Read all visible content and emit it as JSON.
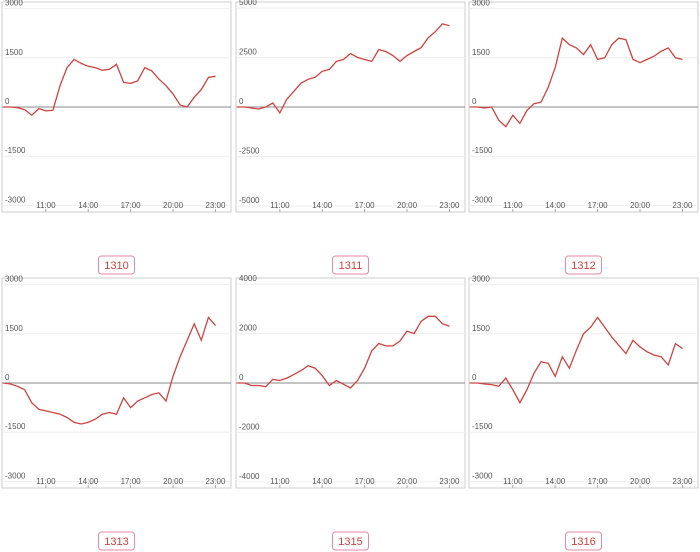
{
  "chart_data": [
    {
      "type": "line",
      "title": "1310",
      "color": "#d0423f",
      "grid": true,
      "x": [
        8,
        8.5,
        9,
        9.5,
        10,
        10.5,
        11,
        11.5,
        12,
        12.5,
        13,
        13.5,
        14,
        14.5,
        15,
        15.5,
        16,
        16.5,
        17,
        17.5,
        18,
        18.5,
        19,
        19.5,
        20,
        20.5,
        21,
        21.5,
        22,
        22.5,
        23
      ],
      "values": [
        0,
        0,
        -20,
        -80,
        -250,
        -50,
        -120,
        -100,
        650,
        1200,
        1450,
        1330,
        1240,
        1200,
        1120,
        1150,
        1300,
        750,
        720,
        800,
        1200,
        1100,
        850,
        650,
        400,
        60,
        0,
        300,
        530,
        900,
        940
      ],
      "xlim": [
        7.9,
        24.1
      ],
      "xticks": [
        {
          "value": 11,
          "label": "11:00"
        },
        {
          "value": 14,
          "label": "14:00"
        },
        {
          "value": 17,
          "label": "17:00"
        },
        {
          "value": 20,
          "label": "20:00"
        },
        {
          "value": 23,
          "label": "23:00"
        }
      ],
      "ylim": [
        -3200,
        3200
      ],
      "yticks": [
        -3000,
        -1500,
        0,
        1500,
        3000
      ]
    },
    {
      "type": "line",
      "title": "1311",
      "color": "#d0423f",
      "grid": true,
      "x": [
        8,
        8.5,
        9,
        9.5,
        10,
        10.5,
        11,
        11.5,
        12,
        12.5,
        13,
        13.5,
        14,
        14.5,
        15,
        15.5,
        16,
        16.5,
        17,
        17.5,
        18,
        18.5,
        19,
        19.5,
        20,
        20.5,
        21,
        21.5,
        22,
        22.5,
        23
      ],
      "values": [
        0,
        0,
        -50,
        -100,
        0,
        200,
        -300,
        400,
        800,
        1200,
        1400,
        1500,
        1800,
        1900,
        2300,
        2400,
        2700,
        2500,
        2400,
        2300,
        2900,
        2800,
        2600,
        2300,
        2600,
        2800,
        3000,
        3500,
        3800,
        4200,
        4100
      ],
      "xlim": [
        7.9,
        24.1
      ],
      "xticks": [
        {
          "value": 11,
          "label": "11:00"
        },
        {
          "value": 14,
          "label": "14:00"
        },
        {
          "value": 17,
          "label": "17:00"
        },
        {
          "value": 20,
          "label": "20:00"
        },
        {
          "value": 23,
          "label": "23:00"
        }
      ],
      "ylim": [
        -5300,
        5300
      ],
      "yticks": [
        -5000,
        -2500,
        0,
        2500,
        5000
      ]
    },
    {
      "type": "line",
      "title": "1312",
      "color": "#d0423f",
      "grid": true,
      "x": [
        8,
        8.5,
        9,
        9.5,
        10,
        10.5,
        11,
        11.5,
        12,
        12.5,
        13,
        13.5,
        14,
        14.5,
        15,
        15.5,
        16,
        16.5,
        17,
        17.5,
        18,
        18.5,
        19,
        19.5,
        20,
        20.5,
        21,
        21.5,
        22,
        22.5,
        23
      ],
      "values": [
        0,
        0,
        -30,
        0,
        -400,
        -600,
        -250,
        -500,
        -100,
        100,
        150,
        600,
        1200,
        2100,
        1900,
        1800,
        1600,
        1900,
        1450,
        1500,
        1900,
        2100,
        2050,
        1450,
        1350,
        1450,
        1550,
        1700,
        1800,
        1500,
        1450
      ],
      "xlim": [
        7.9,
        24.1
      ],
      "xticks": [
        {
          "value": 11,
          "label": "11:00"
        },
        {
          "value": 14,
          "label": "14:00"
        },
        {
          "value": 17,
          "label": "17:00"
        },
        {
          "value": 20,
          "label": "20:00"
        },
        {
          "value": 23,
          "label": "23:00"
        }
      ],
      "ylim": [
        -3200,
        3200
      ],
      "yticks": [
        -3000,
        -1500,
        0,
        1500,
        3000
      ]
    },
    {
      "type": "line",
      "title": "1313",
      "color": "#d0423f",
      "grid": true,
      "x": [
        8,
        8.5,
        9,
        9.5,
        10,
        10.5,
        11,
        11.5,
        12,
        12.5,
        13,
        13.5,
        14,
        14.5,
        15,
        15.5,
        16,
        16.5,
        17,
        17.5,
        18,
        18.5,
        19,
        19.5,
        20,
        20.5,
        21,
        21.5,
        22,
        22.5,
        23
      ],
      "values": [
        0,
        -30,
        -100,
        -200,
        -600,
        -800,
        -850,
        -900,
        -950,
        -1050,
        -1200,
        -1250,
        -1200,
        -1100,
        -950,
        -900,
        -950,
        -450,
        -750,
        -550,
        -450,
        -350,
        -300,
        -550,
        200,
        800,
        1300,
        1800,
        1300,
        2000,
        1750
      ],
      "xlim": [
        7.9,
        24.1
      ],
      "xticks": [
        {
          "value": 11,
          "label": "11:00"
        },
        {
          "value": 14,
          "label": "14:00"
        },
        {
          "value": 17,
          "label": "17:00"
        },
        {
          "value": 20,
          "label": "20:00"
        },
        {
          "value": 23,
          "label": "23:00"
        }
      ],
      "ylim": [
        -3200,
        3200
      ],
      "yticks": [
        -3000,
        -1500,
        0,
        1500,
        3000
      ]
    },
    {
      "type": "line",
      "title": "1315",
      "color": "#d0423f",
      "grid": true,
      "x": [
        8,
        8.5,
        9,
        9.5,
        10,
        10.5,
        11,
        11.5,
        12,
        12.5,
        13,
        13.5,
        14,
        14.5,
        15,
        15.5,
        16,
        16.5,
        17,
        17.5,
        18,
        18.5,
        19,
        19.5,
        20,
        20.5,
        21,
        21.5,
        22,
        22.5,
        23
      ],
      "values": [
        0,
        0,
        -100,
        -100,
        -150,
        150,
        100,
        200,
        350,
        500,
        700,
        600,
        300,
        -100,
        100,
        -50,
        -200,
        100,
        600,
        1300,
        1600,
        1500,
        1500,
        1700,
        2100,
        2000,
        2500,
        2700,
        2700,
        2400,
        2300
      ],
      "xlim": [
        7.9,
        24.1
      ],
      "xticks": [
        {
          "value": 11,
          "label": "11:00"
        },
        {
          "value": 14,
          "label": "14:00"
        },
        {
          "value": 17,
          "label": "17:00"
        },
        {
          "value": 20,
          "label": "20:00"
        },
        {
          "value": 23,
          "label": "23:00"
        }
      ],
      "ylim": [
        -4250,
        4250
      ],
      "yticks": [
        -4000,
        -2000,
        0,
        2000,
        4000
      ]
    },
    {
      "type": "line",
      "title": "1316",
      "color": "#d0423f",
      "grid": true,
      "x": [
        8,
        8.5,
        9,
        9.5,
        10,
        10.5,
        11,
        11.5,
        12,
        12.5,
        13,
        13.5,
        14,
        14.5,
        15,
        15.5,
        16,
        16.5,
        17,
        17.5,
        18,
        18.5,
        19,
        19.5,
        20,
        20.5,
        21,
        21.5,
        22,
        22.5,
        23
      ],
      "values": [
        0,
        0,
        -30,
        -50,
        -100,
        150,
        -200,
        -600,
        -200,
        300,
        650,
        600,
        200,
        800,
        450,
        1000,
        1500,
        1700,
        2000,
        1700,
        1400,
        1150,
        900,
        1300,
        1100,
        950,
        850,
        800,
        550,
        1200,
        1050
      ],
      "xlim": [
        7.9,
        24.1
      ],
      "xticks": [
        {
          "value": 11,
          "label": "11:00"
        },
        {
          "value": 14,
          "label": "14:00"
        },
        {
          "value": 17,
          "label": "17:00"
        },
        {
          "value": 20,
          "label": "20:00"
        },
        {
          "value": 23,
          "label": "23:00"
        }
      ],
      "ylim": [
        -3200,
        3200
      ],
      "yticks": [
        -3000,
        -1500,
        0,
        1500,
        3000
      ]
    }
  ]
}
